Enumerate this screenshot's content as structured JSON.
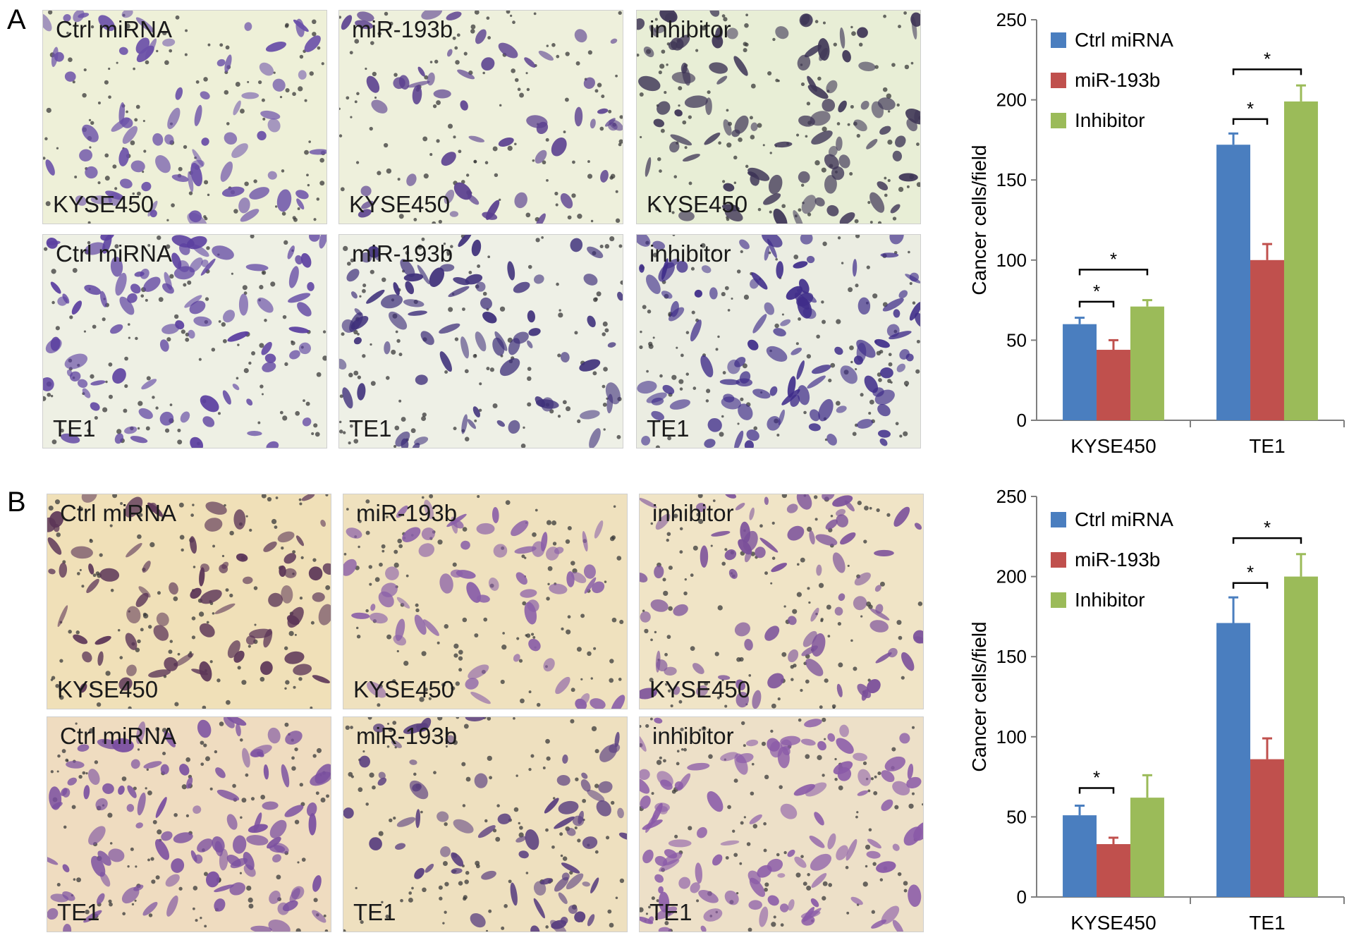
{
  "panels": [
    {
      "letter": "A",
      "micrographs": [
        {
          "top_label": "Ctrl miRNA",
          "bottom_label": "KYSE450",
          "tint": "#eef0d8",
          "stain": "#6a4fa8",
          "density": 0.55
        },
        {
          "top_label": "miR-193b",
          "bottom_label": "KYSE450",
          "tint": "#eef0dc",
          "stain": "#5a3f8f",
          "density": 0.3
        },
        {
          "top_label": "inhibitor",
          "bottom_label": "KYSE450",
          "tint": "#e8eed6",
          "stain": "#3e3556",
          "density": 0.75
        },
        {
          "top_label": "Ctrl miRNA",
          "bottom_label": "TE1",
          "tint": "#eef0e4",
          "stain": "#5b3fa0",
          "density": 0.7
        },
        {
          "top_label": "miR-193b",
          "bottom_label": "TE1",
          "tint": "#eef0e6",
          "stain": "#3e2f7a",
          "density": 0.55
        },
        {
          "top_label": "inhibitor",
          "bottom_label": "TE1",
          "tint": "#ebede2",
          "stain": "#3f2d8a",
          "density": 0.9
        }
      ]
    },
    {
      "letter": "B",
      "micrographs": [
        {
          "top_label": "Ctrl miRNA",
          "bottom_label": "KYSE450",
          "tint": "#f0e0b8",
          "stain": "#5b3557",
          "density": 0.55
        },
        {
          "top_label": "miR-193b",
          "bottom_label": "KYSE450",
          "tint": "#efe1be",
          "stain": "#8a5fa8",
          "density": 0.4
        },
        {
          "top_label": "inhibitor",
          "bottom_label": "KYSE450",
          "tint": "#f0e4c6",
          "stain": "#7a4f9a",
          "density": 0.6
        },
        {
          "top_label": "Ctrl miRNA",
          "bottom_label": "TE1",
          "tint": "#efdcc0",
          "stain": "#7a4fa0",
          "density": 0.85
        },
        {
          "top_label": "miR-193b",
          "bottom_label": "TE1",
          "tint": "#eee0bf",
          "stain": "#5a3f80",
          "density": 0.5
        },
        {
          "top_label": "inhibitor",
          "bottom_label": "TE1",
          "tint": "#ede0c8",
          "stain": "#8a5aa8",
          "density": 0.9
        }
      ]
    }
  ],
  "chart_data": [
    {
      "type": "bar",
      "panel": "A",
      "categories": [
        "KYSE450",
        "TE1"
      ],
      "series": [
        {
          "name": "Ctrl miRNA",
          "color": "#4a7ebf",
          "values": [
            60,
            172
          ],
          "errors": [
            4,
            7
          ]
        },
        {
          "name": "miR-193b",
          "color": "#c0504d",
          "values": [
            44,
            100
          ],
          "errors": [
            6,
            10
          ]
        },
        {
          "name": "Inhibitor",
          "color": "#9bbb59",
          "values": [
            71,
            199
          ],
          "errors": [
            4,
            10
          ]
        }
      ],
      "ylabel": "Cancer cells/field",
      "ylim": [
        0,
        250
      ],
      "yticks": [
        0,
        50,
        100,
        150,
        200,
        250
      ],
      "grid": false,
      "legend": "top-left",
      "significance": [
        {
          "category": 0,
          "from_series": 0,
          "to_series": 1,
          "label": "*",
          "at": 74
        },
        {
          "category": 0,
          "from_series": 0,
          "to_series": 2,
          "label": "*",
          "at": 94
        },
        {
          "category": 1,
          "from_series": 0,
          "to_series": 1,
          "label": "*",
          "at": 188
        },
        {
          "category": 1,
          "from_series": 0,
          "to_series": 2,
          "label": "*",
          "at": 219
        }
      ]
    },
    {
      "type": "bar",
      "panel": "B",
      "categories": [
        "KYSE450",
        "TE1"
      ],
      "series": [
        {
          "name": "Ctrl miRNA",
          "color": "#4a7ebf",
          "values": [
            51,
            171
          ],
          "errors": [
            6,
            16
          ]
        },
        {
          "name": "miR-193b",
          "color": "#c0504d",
          "values": [
            33,
            86
          ],
          "errors": [
            4,
            13
          ]
        },
        {
          "name": "Inhibitor",
          "color": "#9bbb59",
          "values": [
            62,
            200
          ],
          "errors": [
            14,
            14
          ]
        }
      ],
      "ylabel": "Cancer cells/field",
      "ylim": [
        0,
        250
      ],
      "yticks": [
        0,
        50,
        100,
        150,
        200,
        250
      ],
      "grid": false,
      "legend": "top-left",
      "significance": [
        {
          "category": 0,
          "from_series": 0,
          "to_series": 1,
          "label": "*",
          "at": 68
        },
        {
          "category": 1,
          "from_series": 0,
          "to_series": 1,
          "label": "*",
          "at": 196
        },
        {
          "category": 1,
          "from_series": 0,
          "to_series": 2,
          "label": "*",
          "at": 224
        }
      ]
    }
  ]
}
